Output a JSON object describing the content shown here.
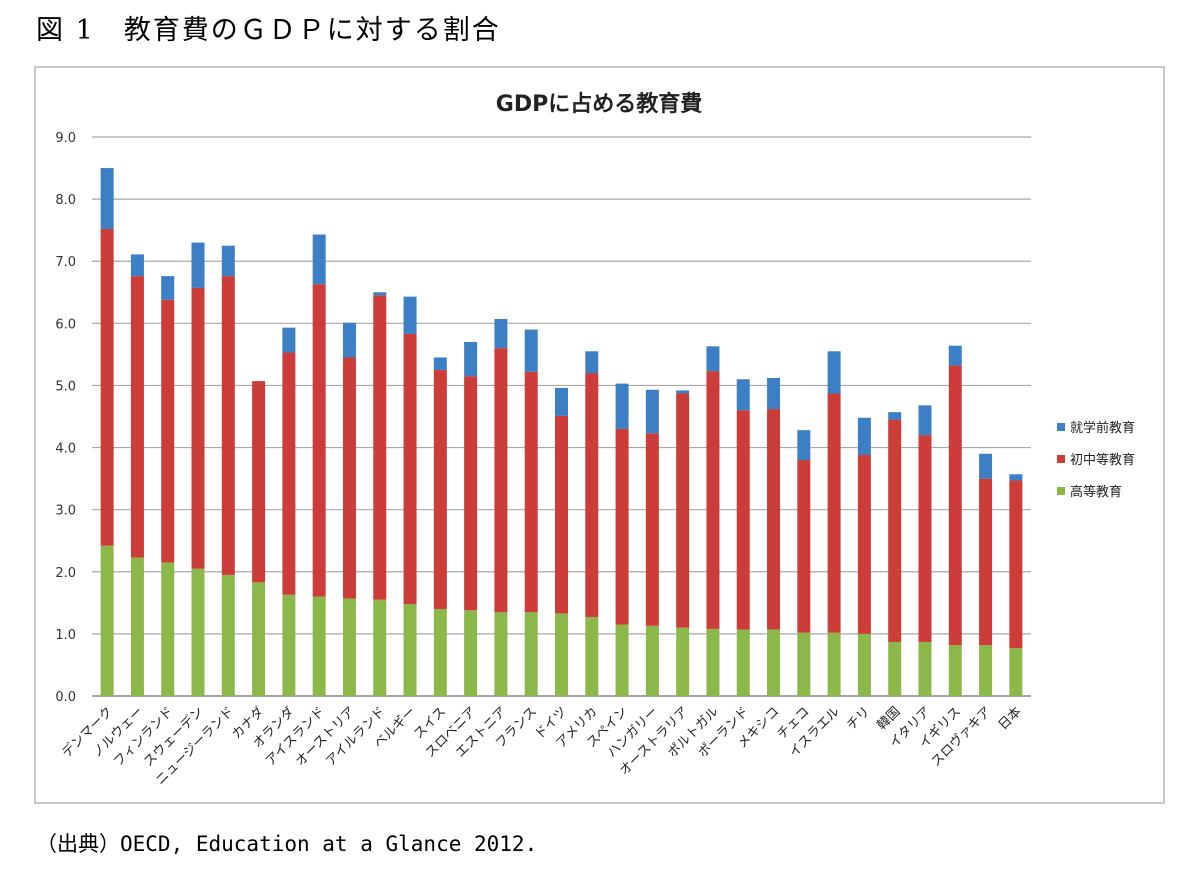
{
  "figure_caption": "図 1　教育費のＧＤＰに対する割合",
  "source_note": "（出典）OECD, Education at a Glance 2012.",
  "chart_data": {
    "type": "bar",
    "stacked": true,
    "title": "GDPに占める教育費",
    "xlabel": "",
    "ylabel": "",
    "ylim": [
      0,
      9
    ],
    "yticks": [
      "0.0",
      "1.0",
      "2.0",
      "3.0",
      "4.0",
      "5.0",
      "6.0",
      "7.0",
      "8.0",
      "9.0"
    ],
    "grid": true,
    "legend_position": "right",
    "categories": [
      "デンマーク",
      "ノルウェー",
      "フィンランド",
      "スウェーデン",
      "ニュージーランド",
      "カナダ",
      "オランダ",
      "アイスランド",
      "オーストリア",
      "アイルランド",
      "ベルギー",
      "スイス",
      "スロベニア",
      "エストニア",
      "フランス",
      "ドイツ",
      "アメリカ",
      "スペイン",
      "ハンガリー",
      "オーストラリア",
      "ポルトガル",
      "ポーランド",
      "メキシコ",
      "チェコ",
      "イスラエル",
      "チリ",
      "韓国",
      "イタリア",
      "イギリス",
      "スロヴァキア",
      "日本"
    ],
    "series": [
      {
        "name": "高等教育",
        "color": "#8cb84a",
        "values": [
          2.42,
          2.23,
          2.15,
          2.05,
          1.95,
          1.83,
          1.63,
          1.6,
          1.57,
          1.55,
          1.48,
          1.4,
          1.38,
          1.35,
          1.35,
          1.33,
          1.27,
          1.15,
          1.13,
          1.1,
          1.08,
          1.07,
          1.07,
          1.02,
          1.02,
          1.0,
          0.87,
          0.87,
          0.82,
          0.82,
          0.77
        ]
      },
      {
        "name": "初中等教育",
        "color": "#cc3d3a",
        "values": [
          5.1,
          4.53,
          4.23,
          4.52,
          4.81,
          3.24,
          3.9,
          5.03,
          3.88,
          4.9,
          4.35,
          3.85,
          3.77,
          4.25,
          3.87,
          3.18,
          3.93,
          3.15,
          3.1,
          3.77,
          4.15,
          3.53,
          3.55,
          2.78,
          3.85,
          2.88,
          3.58,
          3.33,
          4.5,
          2.68,
          2.7
        ]
      },
      {
        "name": "就学前教育",
        "color": "#3d7fc4",
        "values": [
          0.98,
          0.35,
          0.38,
          0.73,
          0.49,
          0.0,
          0.4,
          0.8,
          0.56,
          0.05,
          0.6,
          0.2,
          0.55,
          0.47,
          0.68,
          0.45,
          0.35,
          0.73,
          0.7,
          0.05,
          0.4,
          0.5,
          0.5,
          0.48,
          0.68,
          0.6,
          0.12,
          0.48,
          0.32,
          0.4,
          0.1
        ]
      }
    ]
  }
}
